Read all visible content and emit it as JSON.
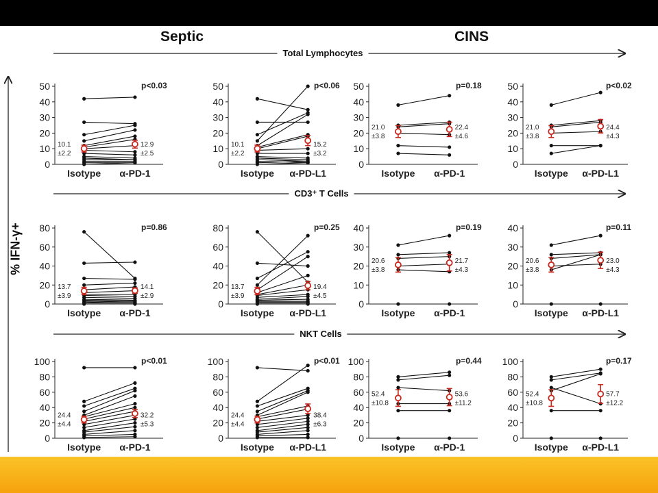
{
  "groups": {
    "left": "Septic",
    "right": "CINS"
  },
  "y_axis_label": "% IFN-γ+",
  "sections": [
    "Total Lymphocytes",
    "CD3⁺ T Cells",
    "NKT Cells"
  ],
  "chart_data": [
    {
      "type": "scatter",
      "panel": "Total Lymphocytes / Septic / α-PD-1",
      "categories": [
        "Isotype",
        "α-PD-1"
      ],
      "ylim": [
        0,
        50
      ],
      "yticks": [
        0,
        10,
        20,
        30,
        40,
        50
      ],
      "pvalue": "p<0.03",
      "mean_labels": [
        [
          "10.1",
          "±2.2"
        ],
        [
          "12.9",
          "±2.5"
        ]
      ],
      "means": [
        10.1,
        12.9
      ],
      "sems": [
        2.2,
        2.5
      ],
      "pairs": [
        [
          42,
          43
        ],
        [
          27,
          26
        ],
        [
          19,
          25
        ],
        [
          15,
          22
        ],
        [
          12,
          18
        ],
        [
          11,
          16
        ],
        [
          10,
          12
        ],
        [
          9,
          8
        ],
        [
          7,
          6
        ],
        [
          5,
          4
        ],
        [
          4,
          3
        ],
        [
          3,
          3
        ],
        [
          2,
          2
        ],
        [
          1,
          1
        ],
        [
          0,
          1
        ]
      ]
    },
    {
      "type": "scatter",
      "panel": "Total Lymphocytes / Septic / α-PD-L1",
      "categories": [
        "Isotype",
        "α-PD-L1"
      ],
      "ylim": [
        0,
        50
      ],
      "yticks": [
        0,
        10,
        20,
        30,
        40,
        50
      ],
      "pvalue": "p<0.06",
      "mean_labels": [
        [
          "10.1",
          "±2.2"
        ],
        [
          "15.2",
          "±3.2"
        ]
      ],
      "means": [
        10.1,
        15.2
      ],
      "sems": [
        2.2,
        3.2
      ],
      "pairs": [
        [
          42,
          35
        ],
        [
          27,
          27
        ],
        [
          19,
          33
        ],
        [
          15,
          50
        ],
        [
          12,
          32
        ],
        [
          11,
          19
        ],
        [
          10,
          18
        ],
        [
          9,
          10
        ],
        [
          7,
          7
        ],
        [
          5,
          4
        ],
        [
          4,
          3
        ],
        [
          3,
          2
        ],
        [
          2,
          1
        ],
        [
          1,
          2
        ],
        [
          0,
          1
        ]
      ]
    },
    {
      "type": "scatter",
      "panel": "Total Lymphocytes / CINS / α-PD-1",
      "categories": [
        "Isotype",
        "α-PD-1"
      ],
      "ylim": [
        0,
        50
      ],
      "yticks": [
        0,
        10,
        20,
        30,
        40,
        50
      ],
      "pvalue": "p=0.18",
      "mean_labels": [
        [
          "21.0",
          "±3.8"
        ],
        [
          "22.4",
          "±4.6"
        ]
      ],
      "means": [
        21.0,
        22.4
      ],
      "sems": [
        3.8,
        4.6
      ],
      "pairs": [
        [
          38,
          44
        ],
        [
          25,
          27
        ],
        [
          24,
          26
        ],
        [
          20,
          19
        ],
        [
          12,
          11
        ],
        [
          7,
          6
        ]
      ]
    },
    {
      "type": "scatter",
      "panel": "Total Lymphocytes / CINS / α-PD-L1",
      "categories": [
        "Isotype",
        "α-PD-L1"
      ],
      "ylim": [
        0,
        50
      ],
      "yticks": [
        0,
        10,
        20,
        30,
        40,
        50
      ],
      "pvalue": "p<0.02",
      "mean_labels": [
        [
          "21.0",
          "±3.8"
        ],
        [
          "24.4",
          "±4.3"
        ]
      ],
      "means": [
        21.0,
        24.4
      ],
      "sems": [
        3.8,
        4.3
      ],
      "pairs": [
        [
          38,
          46
        ],
        [
          25,
          28
        ],
        [
          24,
          27
        ],
        [
          20,
          21
        ],
        [
          12,
          12
        ],
        [
          7,
          12
        ]
      ]
    },
    {
      "type": "scatter",
      "panel": "CD3+ T Cells / Septic / α-PD-1",
      "categories": [
        "Isotype",
        "α-PD-1"
      ],
      "ylim": [
        0,
        80
      ],
      "yticks": [
        0,
        20,
        40,
        60,
        80
      ],
      "pvalue": "p=0.86",
      "mean_labels": [
        [
          "13.7",
          "±3.9"
        ],
        [
          "14.1",
          "±2.9"
        ]
      ],
      "means": [
        13.7,
        14.1
      ],
      "sems": [
        3.9,
        2.9
      ],
      "pairs": [
        [
          76,
          27
        ],
        [
          43,
          44
        ],
        [
          27,
          26
        ],
        [
          20,
          22
        ],
        [
          15,
          18
        ],
        [
          12,
          14
        ],
        [
          10,
          10
        ],
        [
          9,
          8
        ],
        [
          7,
          6
        ],
        [
          5,
          4
        ],
        [
          4,
          3
        ],
        [
          3,
          2
        ],
        [
          2,
          1
        ],
        [
          1,
          1
        ],
        [
          0,
          0
        ]
      ]
    },
    {
      "type": "scatter",
      "panel": "CD3+ T Cells / Septic / α-PD-L1",
      "categories": [
        "Isotype",
        "α-PD-L1"
      ],
      "ylim": [
        0,
        80
      ],
      "yticks": [
        0,
        20,
        40,
        60,
        80
      ],
      "pvalue": "p=0.25",
      "mean_labels": [
        [
          "13.7",
          "±3.9"
        ],
        [
          "19.4",
          "±4.5"
        ]
      ],
      "means": [
        13.7,
        19.4
      ],
      "sems": [
        3.9,
        4.5
      ],
      "pairs": [
        [
          76,
          23
        ],
        [
          43,
          40
        ],
        [
          27,
          55
        ],
        [
          20,
          72
        ],
        [
          15,
          50
        ],
        [
          12,
          30
        ],
        [
          10,
          20
        ],
        [
          9,
          15
        ],
        [
          7,
          10
        ],
        [
          5,
          8
        ],
        [
          4,
          5
        ],
        [
          3,
          3
        ],
        [
          2,
          2
        ],
        [
          1,
          1
        ],
        [
          0,
          0
        ]
      ]
    },
    {
      "type": "scatter",
      "panel": "CD3+ T Cells / CINS / α-PD-1",
      "categories": [
        "Isotype",
        "α-PD-1"
      ],
      "ylim": [
        0,
        40
      ],
      "yticks": [
        0,
        10,
        20,
        30,
        40
      ],
      "pvalue": "p=0.19",
      "mean_labels": [
        [
          "20.6",
          "±3.8"
        ],
        [
          "21.7",
          "±4.3"
        ]
      ],
      "means": [
        20.6,
        21.7
      ],
      "sems": [
        3.8,
        4.3
      ],
      "pairs": [
        [
          31,
          36
        ],
        [
          26,
          27
        ],
        [
          24,
          25
        ],
        [
          20,
          21
        ],
        [
          18,
          17
        ],
        [
          0,
          0
        ]
      ]
    },
    {
      "type": "scatter",
      "panel": "CD3+ T Cells / CINS / α-PD-L1",
      "categories": [
        "Isotype",
        "α-PD-L1"
      ],
      "ylim": [
        0,
        40
      ],
      "yticks": [
        0,
        10,
        20,
        30,
        40
      ],
      "pvalue": "p=0.11",
      "mean_labels": [
        [
          "20.6",
          "±3.8"
        ],
        [
          "23.0",
          "±4.3"
        ]
      ],
      "means": [
        20.6,
        23.0
      ],
      "sems": [
        3.8,
        4.3
      ],
      "pairs": [
        [
          31,
          36
        ],
        [
          26,
          27
        ],
        [
          24,
          26
        ],
        [
          20,
          21
        ],
        [
          18,
          26
        ],
        [
          0,
          0
        ]
      ]
    },
    {
      "type": "scatter",
      "panel": "NKT Cells / Septic / α-PD-1",
      "categories": [
        "Isotype",
        "α-PD-1"
      ],
      "ylim": [
        0,
        100
      ],
      "yticks": [
        0,
        20,
        40,
        60,
        80,
        100
      ],
      "pvalue": "p<0.01",
      "mean_labels": [
        [
          "24.4",
          "±4.4"
        ],
        [
          "32.2",
          "±5.3"
        ]
      ],
      "means": [
        24.4,
        32.2
      ],
      "sems": [
        4.4,
        5.3
      ],
      "pairs": [
        [
          92,
          92
        ],
        [
          48,
          72
        ],
        [
          42,
          65
        ],
        [
          35,
          62
        ],
        [
          30,
          55
        ],
        [
          28,
          45
        ],
        [
          25,
          40
        ],
        [
          22,
          35
        ],
        [
          18,
          30
        ],
        [
          14,
          25
        ],
        [
          10,
          20
        ],
        [
          8,
          15
        ],
        [
          5,
          10
        ],
        [
          3,
          5
        ],
        [
          1,
          2
        ]
      ]
    },
    {
      "type": "scatter",
      "panel": "NKT Cells / Septic / α-PD-L1",
      "categories": [
        "Isotype",
        "α-PD-L1"
      ],
      "ylim": [
        0,
        100
      ],
      "yticks": [
        0,
        20,
        40,
        60,
        80,
        100
      ],
      "pvalue": "p<0.01",
      "mean_labels": [
        [
          "24.4",
          "±4.4"
        ],
        [
          "38.4",
          "±6.3"
        ]
      ],
      "means": [
        24.4,
        38.4
      ],
      "sems": [
        4.4,
        6.3
      ],
      "pairs": [
        [
          92,
          88
        ],
        [
          48,
          95
        ],
        [
          42,
          65
        ],
        [
          35,
          62
        ],
        [
          30,
          60
        ],
        [
          28,
          42
        ],
        [
          25,
          38
        ],
        [
          22,
          30
        ],
        [
          18,
          26
        ],
        [
          14,
          22
        ],
        [
          10,
          18
        ],
        [
          8,
          14
        ],
        [
          5,
          10
        ],
        [
          3,
          5
        ],
        [
          1,
          1
        ]
      ]
    },
    {
      "type": "scatter",
      "panel": "NKT Cells / CINS / α-PD-1",
      "categories": [
        "Isotype",
        "α-PD-1"
      ],
      "ylim": [
        0,
        100
      ],
      "yticks": [
        0,
        20,
        40,
        60,
        80,
        100
      ],
      "pvalue": "p=0.44",
      "mean_labels": [
        [
          "52.4",
          "±10.8"
        ],
        [
          "53.6",
          "±11.2"
        ]
      ],
      "means": [
        52.4,
        53.6
      ],
      "sems": [
        10.8,
        11.2
      ],
      "pairs": [
        [
          80,
          86
        ],
        [
          76,
          82
        ],
        [
          66,
          62
        ],
        [
          45,
          45
        ],
        [
          36,
          36
        ],
        [
          0,
          0
        ]
      ]
    },
    {
      "type": "scatter",
      "panel": "NKT Cells / CINS / α-PD-L1",
      "categories": [
        "Isotype",
        "α-PD-L1"
      ],
      "ylim": [
        0,
        100
      ],
      "yticks": [
        0,
        20,
        40,
        60,
        80,
        100
      ],
      "pvalue": "p=0.17",
      "mean_labels": [
        [
          "52.4",
          "±10.8"
        ],
        [
          "57.7",
          "±12.2"
        ]
      ],
      "means": [
        52.4,
        57.7
      ],
      "sems": [
        10.8,
        12.2
      ],
      "pairs": [
        [
          80,
          90
        ],
        [
          76,
          85
        ],
        [
          66,
          45
        ],
        [
          62,
          84
        ],
        [
          36,
          36
        ],
        [
          0,
          0
        ]
      ]
    }
  ]
}
